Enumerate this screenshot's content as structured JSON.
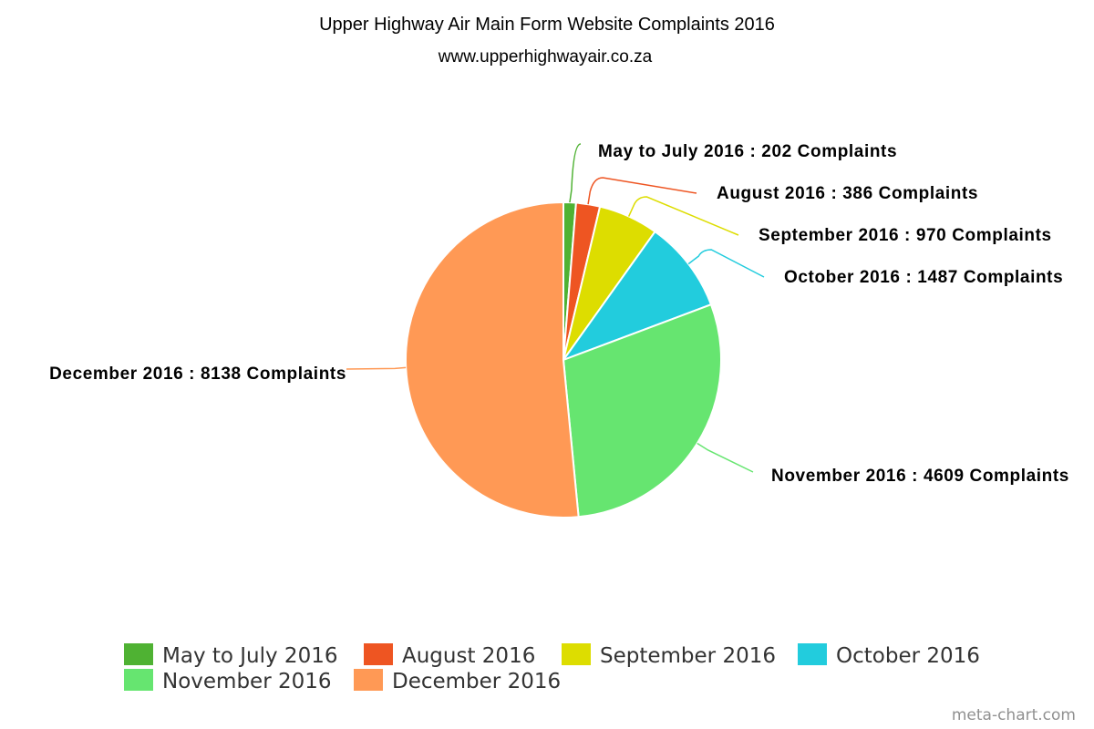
{
  "chart_data": {
    "type": "pie",
    "title": "Upper Highway Air Main Form Website Complaints 2016",
    "subtitle": "www.upperhighwayair.co.za",
    "categories": [
      "May to July 2016",
      "August 2016",
      "September 2016",
      "October 2016",
      "November 2016",
      "December 2016"
    ],
    "values": [
      202,
      386,
      970,
      1487,
      4609,
      8138
    ],
    "value_suffix": "Complaints",
    "colors": [
      "#4fb233",
      "#ee5522",
      "#dddd00",
      "#22ccdd",
      "#66e570",
      "#ff9955"
    ],
    "data_labels": [
      "May to July 2016 : 202 Complaints",
      "August 2016 : 386 Complaints",
      "September 2016 : 970 Complaints",
      "October 2016 : 1487 Complaints",
      "November 2016 : 4609 Complaints",
      "December 2016 : 8138 Complaints"
    ],
    "legend_placement": "bottom"
  },
  "credit": "meta-chart.com"
}
